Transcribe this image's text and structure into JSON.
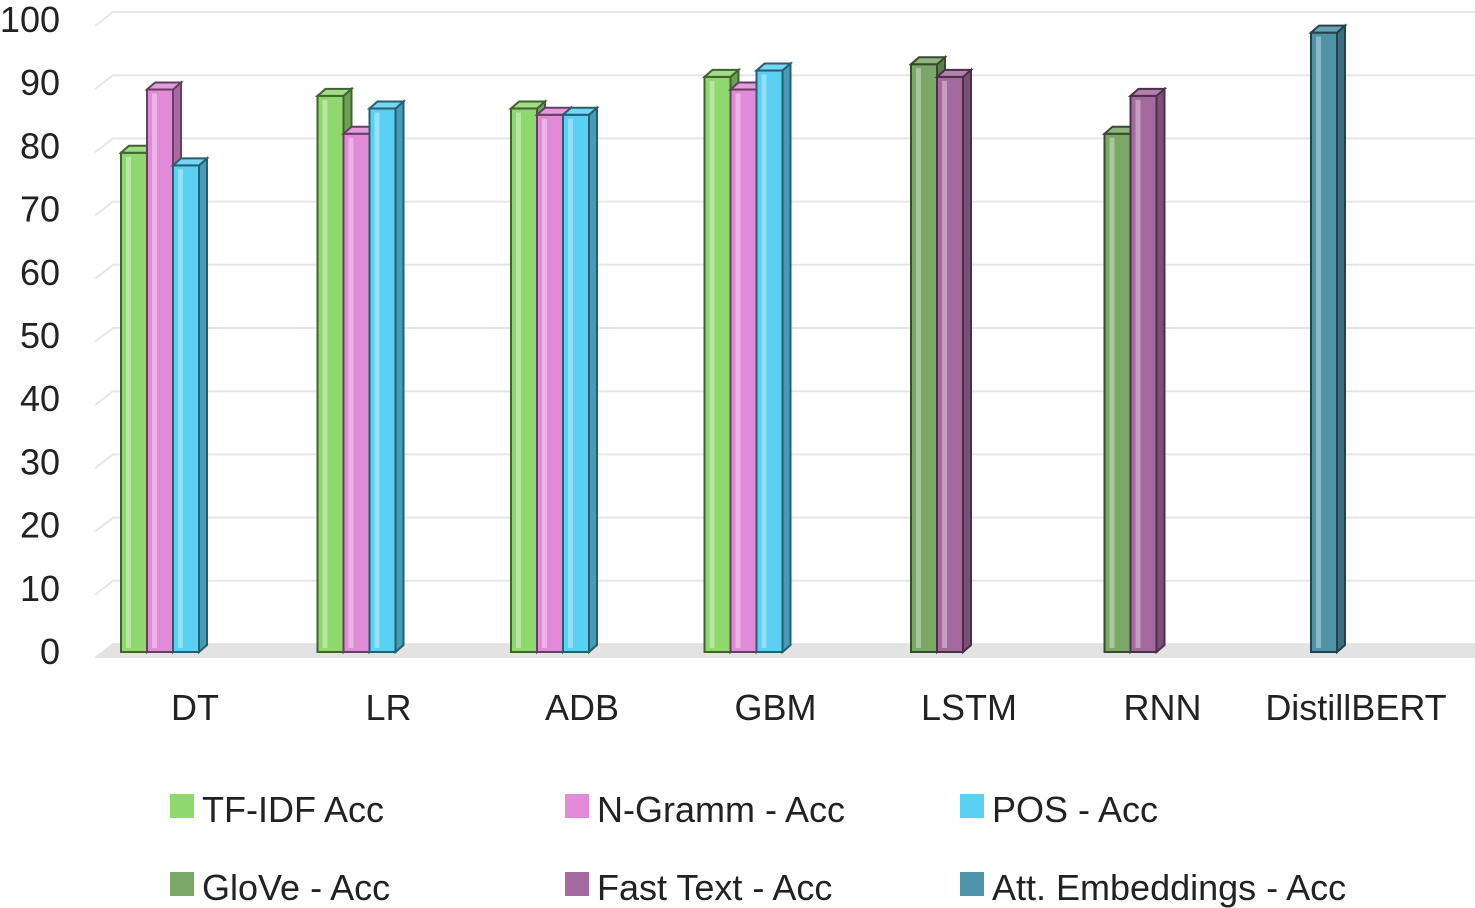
{
  "chart_data": {
    "type": "bar",
    "title": "",
    "xlabel": "",
    "ylabel": "",
    "ylim": [
      0,
      100
    ],
    "yticks": [
      0,
      10,
      20,
      30,
      40,
      50,
      60,
      70,
      80,
      90,
      100
    ],
    "grid": true,
    "legend_position": "bottom",
    "categories": [
      "DT",
      "LR",
      "ADB",
      "GBM",
      "LSTM",
      "RNN",
      "DistillBERT"
    ],
    "series": [
      {
        "name": "TF-IDF Acc",
        "color": "#8fd86e",
        "values": [
          79,
          88,
          86,
          91,
          null,
          null,
          null
        ]
      },
      {
        "name": "N-Gramm - Acc",
        "color": "#e08ad8",
        "values": [
          89,
          82,
          85,
          89,
          null,
          null,
          null
        ]
      },
      {
        "name": "POS - Acc",
        "color": "#5ad0f4",
        "values": [
          77,
          86,
          85,
          92,
          null,
          null,
          null
        ]
      },
      {
        "name": "GloVe - Acc",
        "color": "#7aa866",
        "values": [
          null,
          null,
          null,
          null,
          93,
          82,
          null
        ]
      },
      {
        "name": "Fast Text - Acc",
        "color": "#a46aa0",
        "values": [
          null,
          null,
          null,
          null,
          91,
          88,
          null
        ]
      },
      {
        "name": "Att. Embeddings - Acc",
        "color": "#4f93a8",
        "values": [
          null,
          null,
          null,
          null,
          null,
          null,
          98
        ]
      }
    ]
  }
}
